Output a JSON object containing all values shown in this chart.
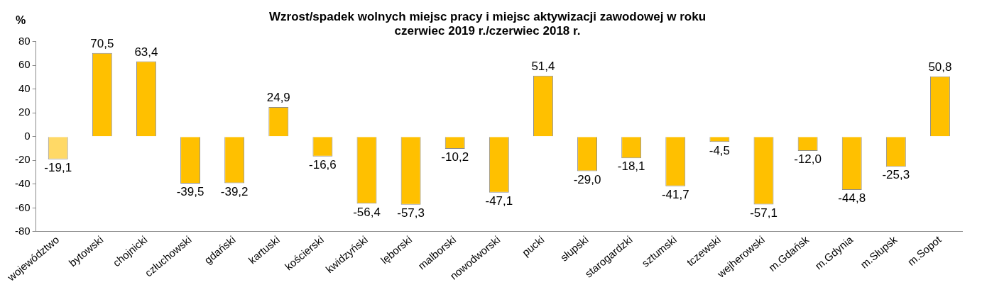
{
  "chart_data": {
    "type": "bar",
    "title": [
      "Wzrost/spadek wolnych miejsc pracy i miejsc aktywizacji zawodowej w roku",
      "czerwiec 2019 r./czerwiec 2018 r."
    ],
    "ylabel": "%",
    "categories": [
      "województwo",
      "bytowski",
      "chojnicki",
      "człuchowski",
      "gdański",
      "kartuski",
      "kościerski",
      "kwidzyński",
      "lęborski",
      "malborski",
      "nowodworski",
      "pucki",
      "słupski",
      "starogardzki",
      "sztumski",
      "tczewski",
      "wejherowski",
      "m.Gdańsk",
      "m.Gdynia",
      "m.Słupsk",
      "m.Sopot"
    ],
    "values": [
      -19.1,
      70.5,
      63.4,
      -39.5,
      -39.2,
      24.9,
      -16.6,
      -56.4,
      -57.3,
      -10.2,
      -47.1,
      51.4,
      -29.0,
      -18.1,
      -41.7,
      -4.5,
      -57.1,
      -12.0,
      -44.8,
      -25.3,
      50.8
    ],
    "value_labels": [
      "-19,1",
      "70,5",
      "63,4",
      "-39,5",
      "-39,2",
      "24,9",
      "-16,6",
      "-56,4",
      "-57,3",
      "-10,2",
      "-47,1",
      "51,4",
      "-29,0",
      "-18,1",
      "-41,7",
      "-4,5",
      "-57,1",
      "-12,0",
      "-44,8",
      "-25,3",
      "50,8"
    ],
    "colors": [
      "#ffd966",
      "#ffc000",
      "#ffc000",
      "#ffc000",
      "#ffc000",
      "#ffc000",
      "#ffc000",
      "#ffc000",
      "#ffc000",
      "#ffc000",
      "#ffc000",
      "#ffc000",
      "#ffc000",
      "#ffc000",
      "#ffc000",
      "#ffc000",
      "#ffc000",
      "#ffc000",
      "#ffc000",
      "#ffc000",
      "#ffc000"
    ],
    "ylim": [
      -80,
      80
    ],
    "yticks": [
      -80,
      -60,
      -40,
      -20,
      0,
      20,
      40,
      60,
      80
    ],
    "grid": false,
    "legend": false
  }
}
